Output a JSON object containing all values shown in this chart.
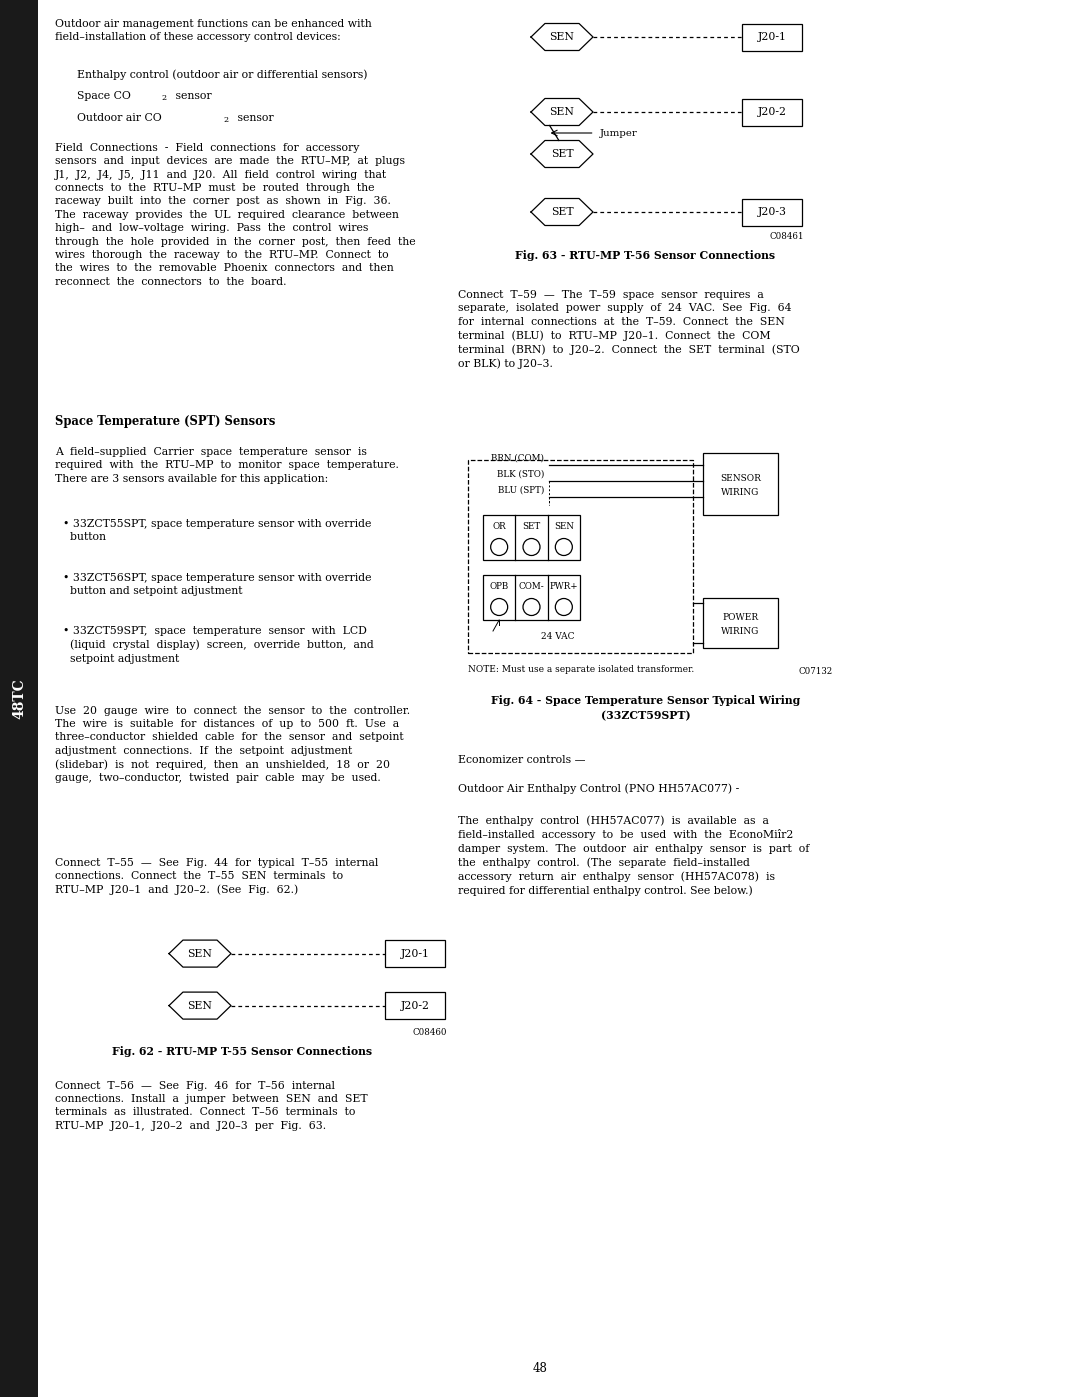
{
  "page_width": 10.8,
  "page_height": 13.97,
  "bg_color": "#ffffff",
  "text_color": "#000000",
  "page_number": "48",
  "sidebar_label": "48TC",
  "sidebar_bg": "#1a1a1a",
  "sidebar_text": "#ffffff",
  "fig62_caption": "Fig. 62 - RTU-MP T-55 Sensor Connections",
  "fig62_code": "C08460",
  "fig63_caption": "Fig. 63 - RTU-MP T-56 Sensor Connections",
  "fig63_code": "C08461",
  "fig64_caption_line1": "Fig. 64 - Space Temperature Sensor Typical Wiring",
  "fig64_caption_line2": "(33ZCT59SPT)",
  "fig64_code": "C07132"
}
